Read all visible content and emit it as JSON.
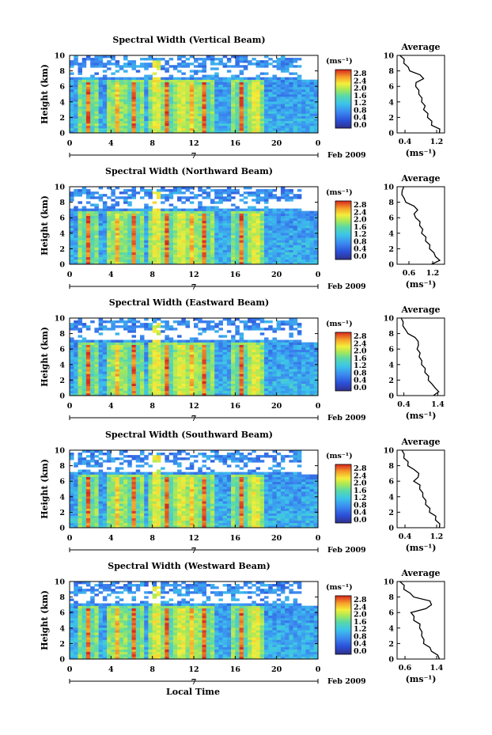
{
  "chart_data": [
    {
      "type": "heatmap",
      "title": "Spectral Width (Vertical Beam)",
      "ylabel": "Height (km)",
      "x_ticks": [
        "0",
        "4",
        "8",
        "12",
        "16",
        "20",
        "0"
      ],
      "y_ticks": [
        "0",
        "2",
        "4",
        "6",
        "8",
        "10"
      ],
      "date_marker": "7",
      "date_label": "Feb 2009",
      "xlim": [
        0,
        24
      ],
      "ylim": [
        0,
        10
      ],
      "colorbar": {
        "unit": "(ms⁻¹)",
        "ticks": [
          "0.0",
          "0.4",
          "0.8",
          "1.2",
          "1.6",
          "2.0",
          "2.4",
          "2.8"
        ],
        "range": [
          0,
          2.8
        ]
      },
      "profile": {
        "title": "Average",
        "xlabel": "(ms⁻¹)",
        "x_ticks": [
          "0.4",
          "1.2"
        ],
        "xlim": [
          0.2,
          1.4
        ],
        "height": [
          0,
          0.5,
          1,
          1.5,
          2,
          2.5,
          3,
          3.5,
          4,
          4.5,
          5,
          5.5,
          6,
          6.5,
          7,
          7.5,
          8,
          8.5,
          9,
          9.5,
          10
        ],
        "values": [
          1.3,
          1.25,
          1.1,
          1.05,
          1.0,
          0.95,
          0.9,
          0.88,
          0.85,
          0.8,
          0.78,
          0.72,
          0.7,
          0.65,
          0.9,
          0.75,
          0.55,
          0.45,
          0.4,
          0.35,
          0.3
        ]
      }
    },
    {
      "type": "heatmap",
      "title": "Spectral Width (Northward Beam)",
      "ylabel": "Height (km)",
      "x_ticks": [
        "0",
        "4",
        "8",
        "12",
        "16",
        "20",
        "0"
      ],
      "y_ticks": [
        "0",
        "2",
        "4",
        "6",
        "8",
        "10"
      ],
      "date_marker": "7",
      "date_label": "Feb 2009",
      "xlim": [
        0,
        24
      ],
      "ylim": [
        0,
        10
      ],
      "colorbar": {
        "unit": "(ms⁻¹)",
        "ticks": [
          "0.0",
          "0.4",
          "0.8",
          "1.2",
          "1.6",
          "2.0",
          "2.4",
          "2.8"
        ],
        "range": [
          0,
          2.8
        ]
      },
      "profile": {
        "title": "Average",
        "xlabel": "(ms⁻¹)",
        "x_ticks": [
          "0.6",
          "1.2"
        ],
        "xlim": [
          0.3,
          1.5
        ],
        "height": [
          0,
          0.5,
          1,
          1.5,
          2,
          2.5,
          3,
          3.5,
          4,
          4.5,
          5,
          5.5,
          6,
          6.5,
          7,
          7.5,
          8,
          8.5,
          9,
          9.5,
          10
        ],
        "values": [
          1.2,
          1.35,
          1.3,
          1.2,
          1.15,
          1.1,
          1.05,
          1.0,
          0.95,
          0.92,
          0.9,
          0.85,
          0.8,
          0.7,
          0.85,
          0.7,
          0.55,
          0.45,
          0.45,
          0.4,
          0.5
        ]
      }
    },
    {
      "type": "heatmap",
      "title": "Spectral Width (Eastward Beam)",
      "ylabel": "Height (km)",
      "x_ticks": [
        "0",
        "4",
        "8",
        "12",
        "16",
        "20",
        "0"
      ],
      "y_ticks": [
        "0",
        "2",
        "4",
        "6",
        "8",
        "10"
      ],
      "date_marker": "7",
      "date_label": "Feb 2009",
      "xlim": [
        0,
        24
      ],
      "ylim": [
        0,
        10
      ],
      "colorbar": {
        "unit": "(ms⁻¹)",
        "ticks": [
          "0.0",
          "0.4",
          "0.8",
          "1.2",
          "1.6",
          "2.0",
          "2.4",
          "2.8"
        ],
        "range": [
          0,
          2.8
        ]
      },
      "profile": {
        "title": "Average",
        "xlabel": "(ms⁻¹)",
        "x_ticks": [
          "0.4",
          "1.4"
        ],
        "xlim": [
          0.2,
          1.6
        ],
        "height": [
          0,
          0.5,
          1,
          1.5,
          2,
          2.5,
          3,
          3.5,
          4,
          4.5,
          5,
          5.5,
          6,
          6.5,
          7,
          7.5,
          8,
          8.5,
          9,
          9.5,
          10
        ],
        "values": [
          1.3,
          1.4,
          1.35,
          1.2,
          1.15,
          1.1,
          1.05,
          1.0,
          0.95,
          0.9,
          0.88,
          0.85,
          0.82,
          0.8,
          0.85,
          0.7,
          0.55,
          0.42,
          0.4,
          0.35,
          0.35
        ]
      }
    },
    {
      "type": "heatmap",
      "title": "Spectral Width (Southward Beam)",
      "ylabel": "Height (km)",
      "x_ticks": [
        "0",
        "4",
        "8",
        "12",
        "16",
        "20",
        "0"
      ],
      "y_ticks": [
        "0",
        "2",
        "4",
        "6",
        "8",
        "10"
      ],
      "date_marker": "7",
      "date_label": "Feb 2009",
      "xlim": [
        0,
        24
      ],
      "ylim": [
        0,
        10
      ],
      "colorbar": {
        "unit": "(ms⁻¹)",
        "ticks": [
          "0.0",
          "0.4",
          "0.8",
          "1.2",
          "1.6",
          "2.0",
          "2.4",
          "2.8"
        ],
        "range": [
          0,
          2.8
        ]
      },
      "profile": {
        "title": "Average",
        "xlabel": "(ms⁻¹)",
        "x_ticks": [
          "0.4",
          "1.2"
        ],
        "xlim": [
          0.2,
          1.4
        ],
        "height": [
          0,
          0.5,
          1,
          1.5,
          2,
          2.5,
          3,
          3.5,
          4,
          4.5,
          5,
          5.5,
          6,
          6.5,
          7,
          7.5,
          8,
          8.5,
          9,
          9.5,
          10
        ],
        "values": [
          1.3,
          1.25,
          1.2,
          1.15,
          1.05,
          1.0,
          0.95,
          0.9,
          0.88,
          0.82,
          0.8,
          0.75,
          0.65,
          0.7,
          0.78,
          0.6,
          0.5,
          0.45,
          0.4,
          0.35,
          0.35
        ]
      }
    },
    {
      "type": "heatmap",
      "title": "Spectral Width (Westward Beam)",
      "ylabel": "Height (km)",
      "x_ticks": [
        "0",
        "4",
        "8",
        "12",
        "16",
        "20",
        "0"
      ],
      "y_ticks": [
        "0",
        "2",
        "4",
        "6",
        "8",
        "10"
      ],
      "date_marker": "7",
      "date_label": "Feb 2009",
      "xlim": [
        0,
        24
      ],
      "ylim": [
        0,
        10
      ],
      "colorbar": {
        "unit": "(ms⁻¹)",
        "ticks": [
          "0.0",
          "0.4",
          "0.8",
          "1.2",
          "1.6",
          "2.0",
          "2.4",
          "2.8"
        ],
        "range": [
          0,
          2.8
        ]
      },
      "profile": {
        "title": "Average",
        "xlabel": "(ms⁻¹)",
        "x_ticks": [
          "0.6",
          "1.4"
        ],
        "xlim": [
          0.4,
          1.6
        ],
        "height": [
          0,
          0.5,
          1,
          1.5,
          2,
          2.5,
          3,
          3.5,
          4,
          4.5,
          5,
          5.5,
          6,
          6.5,
          7,
          7.5,
          8,
          8.5,
          9,
          9.5,
          10
        ],
        "values": [
          1.5,
          1.4,
          1.3,
          1.2,
          1.1,
          1.05,
          1.05,
          1.0,
          1.0,
          0.95,
          0.85,
          0.8,
          0.78,
          1.1,
          1.3,
          1.2,
          0.85,
          0.7,
          0.6,
          0.55,
          0.5
        ]
      }
    }
  ],
  "xlabel": "Local Time"
}
